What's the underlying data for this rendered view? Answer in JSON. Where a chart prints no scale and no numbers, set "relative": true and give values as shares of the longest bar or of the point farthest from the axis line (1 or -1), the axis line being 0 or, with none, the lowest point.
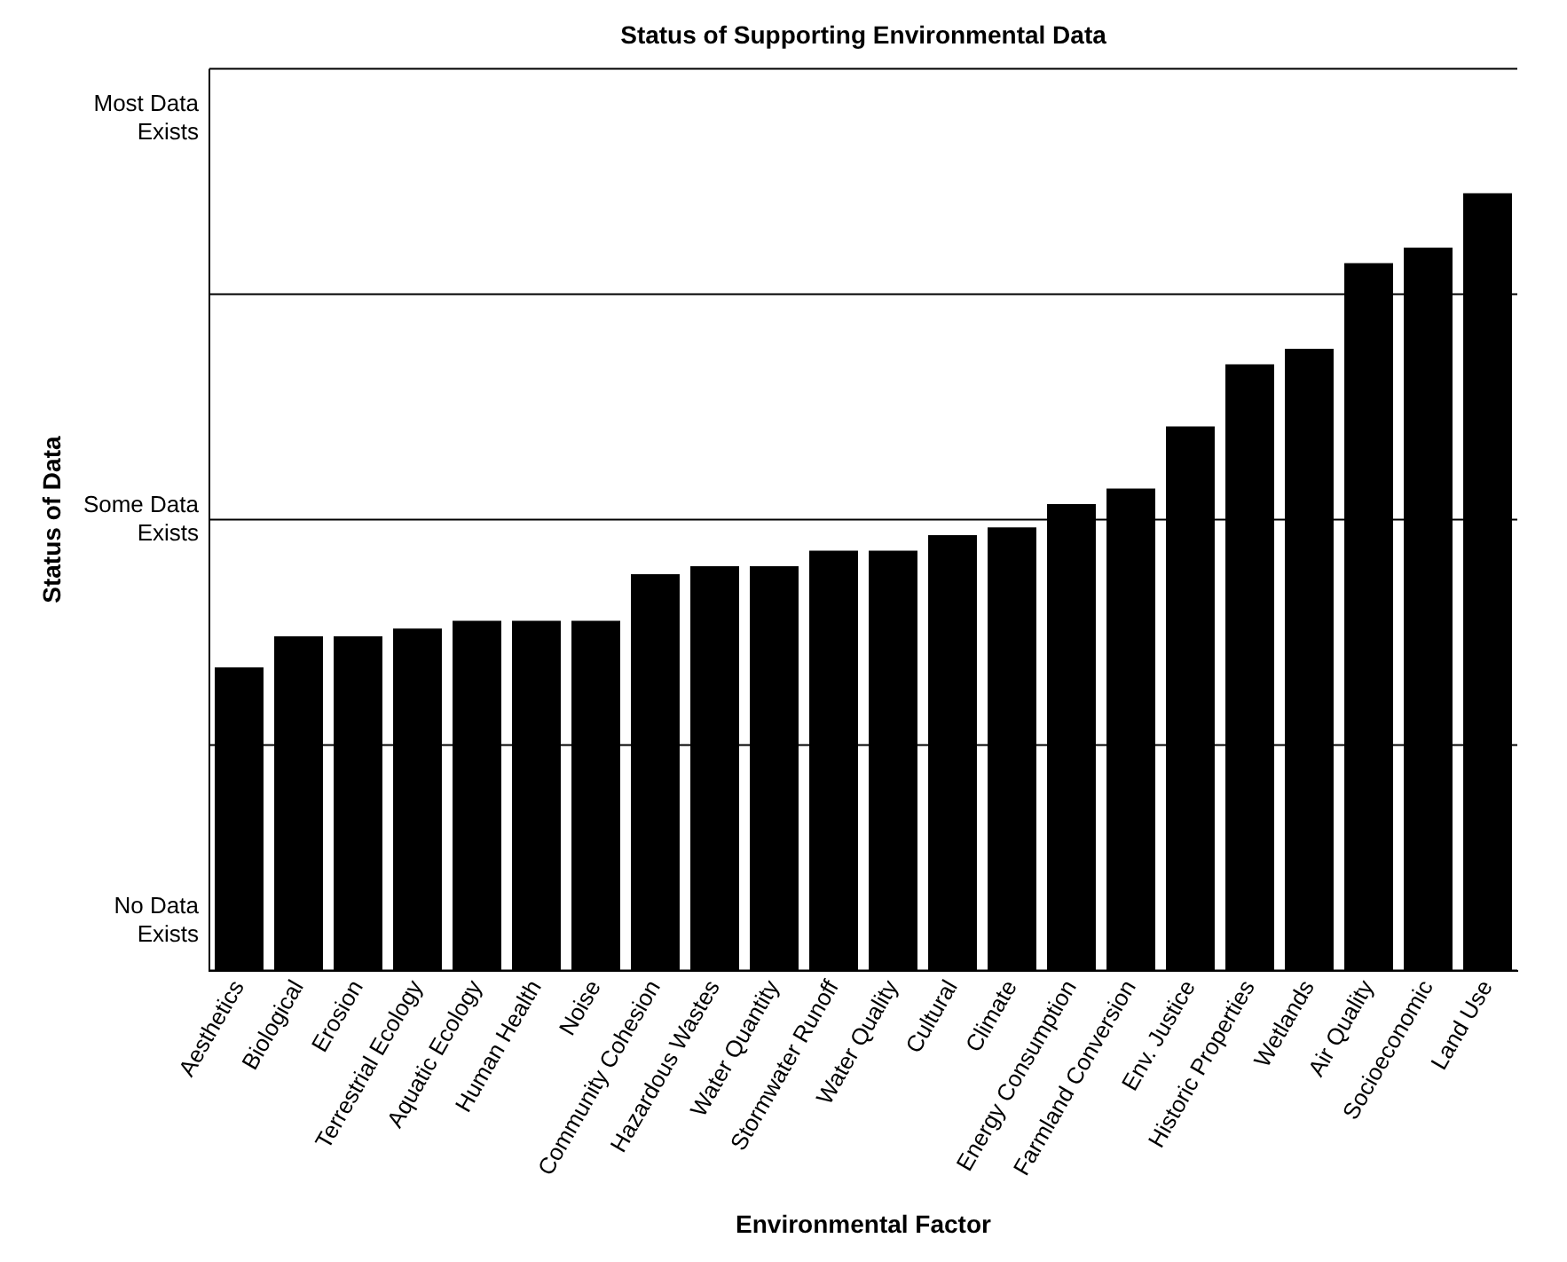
{
  "chart_data": {
    "type": "bar",
    "title": "Status of Supporting Environmental Data",
    "xlabel": "Environmental Factor",
    "ylabel": "Status of Data",
    "categories": [
      "Aesthetics",
      "Biological",
      "Erosion",
      "Terrestrial Ecology",
      "Aquatic Ecology",
      "Human Health",
      "Noise",
      "Community Cohesion",
      "Hazardous Wastes",
      "Water Quantity",
      "Stormwater Runoff",
      "Water Quality",
      "Cultural",
      "Climate",
      "Energy Consumption",
      "Farmland Conversion",
      "Env. Justice",
      "Historic Properties",
      "Wetlands",
      "Air Quality",
      "Socioeconomic",
      "Land Use"
    ],
    "values": [
      0.39,
      0.43,
      0.43,
      0.44,
      0.45,
      0.45,
      0.45,
      0.51,
      0.52,
      0.52,
      0.54,
      0.54,
      0.56,
      0.57,
      0.6,
      0.62,
      0.7,
      0.78,
      0.8,
      0.91,
      0.93,
      1
    ],
    "relative": true,
    "color": "#000000",
    "annotations": [
      "No Data Exists",
      "Some Data Exists",
      "Most Data Exists"
    ],
    "grid": "y",
    "legend": false
  }
}
